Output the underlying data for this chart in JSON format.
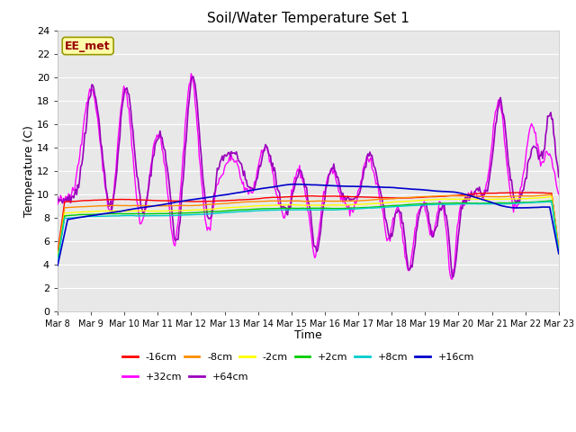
{
  "title": "Soil/Water Temperature Set 1",
  "xlabel": "Time",
  "ylabel": "Temperature (C)",
  "ylim": [
    0,
    24
  ],
  "yticks": [
    0,
    2,
    4,
    6,
    8,
    10,
    12,
    14,
    16,
    18,
    20,
    22,
    24
  ],
  "x_tick_labels": [
    "Mar 8",
    "Mar 9",
    "Mar 10",
    "Mar 11",
    "Mar 12",
    "Mar 13",
    "Mar 14",
    "Mar 15",
    "Mar 16",
    "Mar 17",
    "Mar 18",
    "Mar 19",
    "Mar 20",
    "Mar 21",
    "Mar 22",
    "Mar 23"
  ],
  "fig_bg": "#ffffff",
  "plot_bg": "#e8e8e8",
  "series_colors": {
    "-16cm": "#ff0000",
    "-8cm": "#ff8c00",
    "-2cm": "#ffff00",
    "+2cm": "#00cc00",
    "+8cm": "#00cccc",
    "+16cm": "#0000cc",
    "+32cm": "#ff00ff",
    "+64cm": "#9900bb"
  },
  "annotation_text": "EE_met",
  "annotation_fg": "#990000",
  "annotation_bg": "#ffffaa",
  "annotation_border": "#999900"
}
